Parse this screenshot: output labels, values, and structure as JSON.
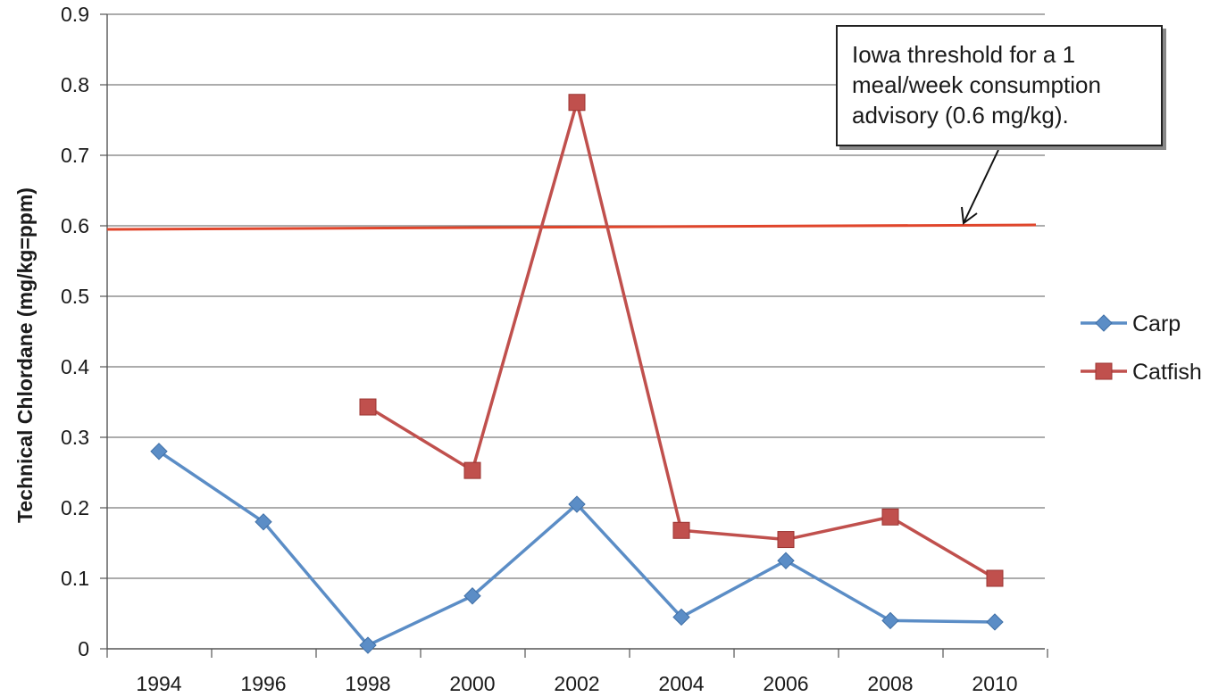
{
  "chart_data": {
    "type": "line",
    "title": "",
    "xlabel": "",
    "ylabel": "Technical Chlordane (mg/kg=ppm)",
    "x": [
      1994,
      1996,
      1998,
      2000,
      2002,
      2004,
      2006,
      2008,
      2010
    ],
    "x_tick_labels": [
      "1994",
      "1996",
      "1998",
      "2000",
      "2002",
      "2004",
      "2006",
      "2008",
      "2010"
    ],
    "y_tick_labels": [
      "0",
      "0.1",
      "0.2",
      "0.3",
      "0.4",
      "0.5",
      "0.6",
      "0.7",
      "0.8",
      "0.9"
    ],
    "ylim": [
      0,
      0.9
    ],
    "grid": true,
    "legend_position": "right",
    "series": [
      {
        "name": "Carp",
        "color": "#5B8DC6",
        "marker": "diamond",
        "values": [
          0.28,
          0.18,
          0.005,
          0.075,
          0.205,
          0.045,
          0.125,
          0.04,
          0.038
        ]
      },
      {
        "name": "Catfish",
        "color": "#C0504D",
        "marker": "square",
        "values": [
          null,
          null,
          0.343,
          0.253,
          0.775,
          0.168,
          0.155,
          0.187,
          0.1
        ]
      }
    ],
    "reference_line": {
      "value": 0.6,
      "color": "#E0452B"
    },
    "annotation": {
      "lines": [
        "Iowa threshold for a 1",
        "meal/week consumption",
        "advisory (0.6 mg/kg)."
      ]
    }
  }
}
